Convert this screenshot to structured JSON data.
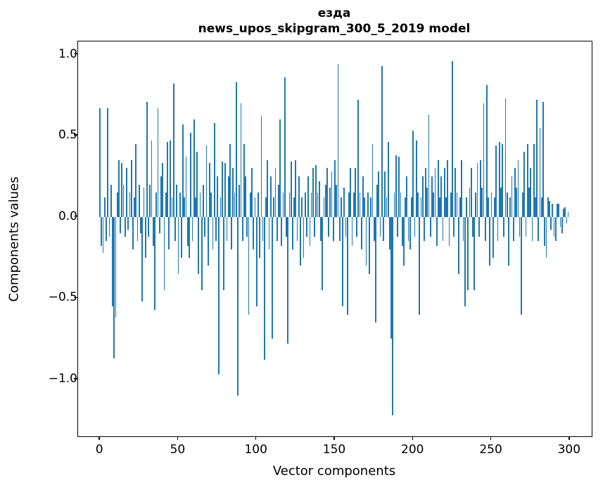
{
  "chart_data": {
    "type": "bar",
    "title": "езда",
    "subtitle": "news_upos_skipgram_300_5_2019 model",
    "xlabel": "Vector components",
    "ylabel": "Components values",
    "xlim": [
      -14,
      314
    ],
    "ylim": [
      -1.35,
      1.08
    ],
    "x_ticks": [
      0,
      50,
      100,
      150,
      200,
      250,
      300
    ],
    "y_ticks": [
      1.0,
      0.5,
      0.0,
      -0.5,
      -1.0
    ],
    "bar_color": "#1f77b4",
    "grid": false,
    "legend": "none",
    "values": [
      0.67,
      -0.18,
      -0.22,
      0.12,
      -0.15,
      0.67,
      -0.12,
      0.2,
      -0.55,
      -0.87,
      -0.62,
      0.15,
      0.35,
      -0.1,
      0.33,
      0.2,
      -0.12,
      0.3,
      -0.08,
      0.15,
      0.35,
      -0.2,
      0.12,
      0.45,
      -0.15,
      0.2,
      -0.1,
      -0.52,
      0.18,
      -0.25,
      0.71,
      -0.12,
      0.2,
      0.47,
      -0.18,
      -0.57,
      0.15,
      0.67,
      -0.1,
      0.25,
      0.33,
      -0.45,
      0.15,
      0.46,
      -0.2,
      0.47,
      0.12,
      0.82,
      -0.15,
      0.2,
      -0.35,
      0.15,
      -0.25,
      0.57,
      0.12,
      0.37,
      -0.18,
      -0.25,
      0.52,
      -0.15,
      0.6,
      0.12,
      0.4,
      -0.35,
      0.15,
      -0.45,
      0.2,
      -0.12,
      0.44,
      -0.3,
      0.33,
      0.15,
      -0.2,
      0.58,
      -0.15,
      0.25,
      -0.97,
      0.12,
      0.34,
      -0.45,
      0.33,
      -0.15,
      0.25,
      0.45,
      -0.2,
      0.3,
      0.15,
      0.83,
      -1.1,
      0.2,
      0.7,
      -0.15,
      0.45,
      0.25,
      -0.12,
      -0.6,
      0.15,
      0.3,
      -0.2,
      0.12,
      -0.55,
      0.15,
      -0.25,
      0.62,
      -0.15,
      -0.88,
      0.12,
      0.35,
      -0.2,
      0.25,
      -0.75,
      0.12,
      0.3,
      -0.15,
      0.2,
      0.6,
      -0.18,
      0.15,
      0.86,
      -0.12,
      -0.78,
      0.15,
      0.34,
      -0.2,
      0.12,
      0.35,
      -0.15,
      0.25,
      -0.3,
      0.12,
      -0.25,
      0.15,
      -0.12,
      0.25,
      -0.18,
      0.15,
      0.3,
      -0.12,
      0.32,
      0.15,
      0.22,
      -0.15,
      -0.45,
      0.12,
      0.2,
      0.3,
      -0.12,
      0.18,
      0.28,
      -0.15,
      0.35,
      0.2,
      0.94,
      -0.15,
      0.12,
      -0.55,
      0.18,
      -0.12,
      -0.6,
      0.15,
      0.3,
      -0.18,
      0.15,
      0.3,
      -0.12,
      0.72,
      0.15,
      -0.2,
      0.25,
      0.12,
      -0.3,
      0.15,
      -0.35,
      0.12,
      0.45,
      -0.15,
      -0.65,
      0.2,
      0.28,
      -0.12,
      0.93,
      -0.15,
      0.28,
      0.12,
      0.46,
      -0.2,
      -0.75,
      -1.22,
      0.15,
      0.38,
      -0.12,
      0.37,
      0.15,
      -0.18,
      -0.3,
      0.12,
      0.25,
      -0.15,
      -0.2,
      0.12,
      0.53,
      -0.12,
      0.47,
      0.15,
      -0.6,
      0.12,
      0.25,
      -0.15,
      0.3,
      0.18,
      0.63,
      -0.12,
      0.25,
      0.15,
      0.3,
      -0.18,
      0.35,
      0.12,
      0.25,
      -0.15,
      0.3,
      0.12,
      0.35,
      -0.18,
      0.15,
      0.96,
      -0.12,
      0.3,
      0.15,
      -0.35,
      0.12,
      0.35,
      -0.15,
      -0.55,
      0.12,
      -0.45,
      0.18,
      0.3,
      -0.12,
      -0.45,
      0.15,
      0.33,
      -0.12,
      0.35,
      0.18,
      0.7,
      -0.15,
      0.81,
      0.12,
      -0.3,
      0.15,
      -0.25,
      0.12,
      0.44,
      -0.15,
      0.46,
      0.18,
      0.45,
      -0.12,
      0.73,
      0.15,
      -0.3,
      0.12,
      0.25,
      -0.15,
      0.3,
      0.18,
      0.35,
      -0.12,
      -0.6,
      0.15,
      0.4,
      -0.12,
      0.45,
      0.18,
      0.3,
      -0.15,
      0.45,
      0.12,
      0.72,
      -0.15,
      0.55,
      0.12,
      0.71,
      -0.18,
      -0.25,
      0.12,
      0.1,
      -0.08,
      0.08,
      -0.12,
      -0.15,
      0.08,
      0.08,
      -0.06,
      -0.1,
      0.05,
      0.06,
      -0.04,
      0.03
    ]
  }
}
